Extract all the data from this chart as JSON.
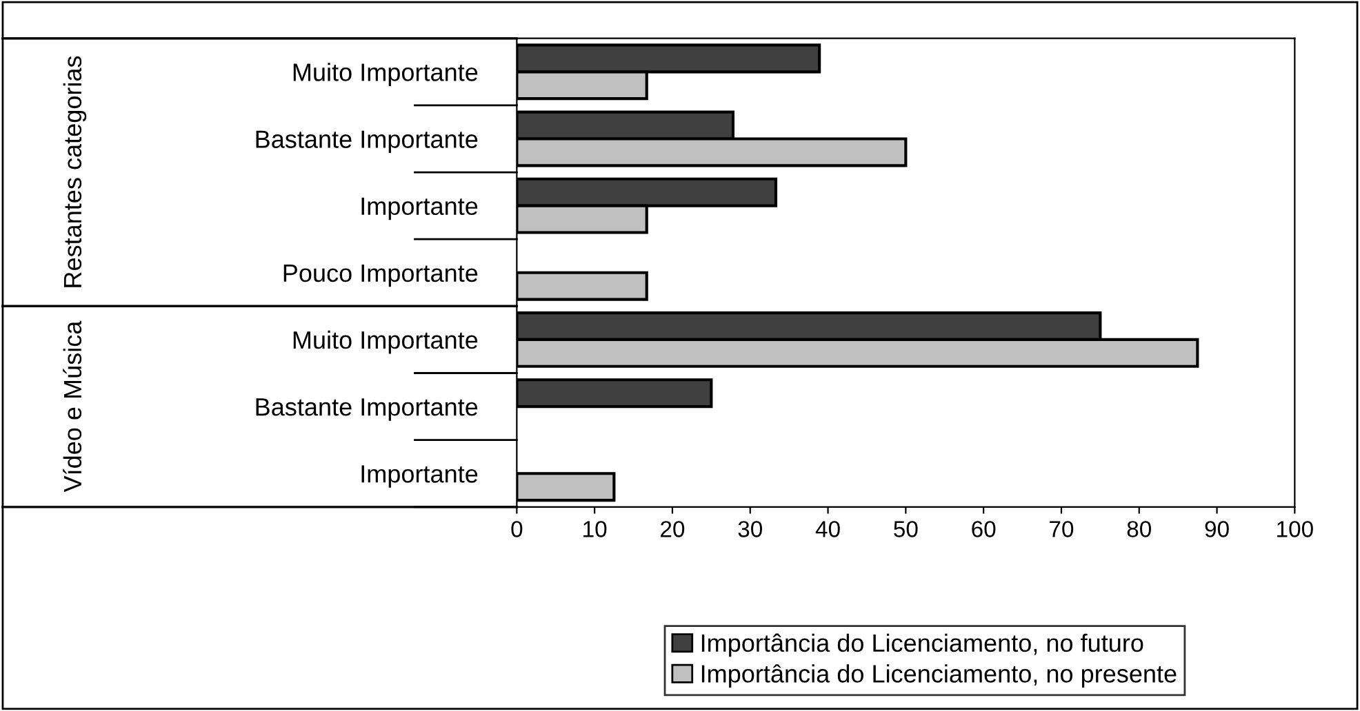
{
  "chart_data": {
    "type": "bar",
    "orientation": "horizontal",
    "categories": [
      "Muito Importante",
      "Bastante Importante",
      "Importante",
      "Pouco Importante",
      "Muito Importante",
      "Bastante Importante",
      "Importante"
    ],
    "annotations": [
      "Restantes categorias",
      "Vídeo e Música"
    ],
    "series": [
      {
        "name": "Importância do Licenciamento, no futuro",
        "color": "#404040",
        "values": [
          38.9,
          27.8,
          33.3,
          null,
          75,
          25,
          null
        ]
      },
      {
        "name": "Importância do Licenciamento, no presente",
        "color": "#c0c0c0",
        "values": [
          16.7,
          50,
          16.7,
          16.7,
          87.5,
          null,
          12.5
        ]
      }
    ],
    "xlim": [
      0,
      100
    ],
    "xticks": [
      0,
      10,
      20,
      30,
      40,
      50,
      60,
      70,
      80,
      90,
      100
    ],
    "grid": false,
    "legend": "bottom"
  }
}
